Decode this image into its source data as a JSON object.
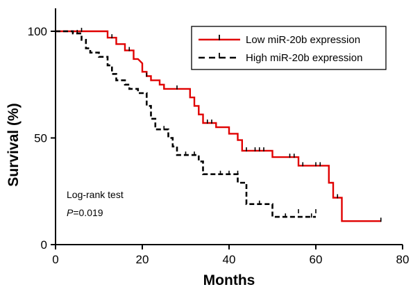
{
  "chart_data": {
    "type": "line",
    "title": "",
    "xlabel": "Months",
    "ylabel": "Survival (%)",
    "xlim": [
      0,
      80
    ],
    "ylim": [
      0,
      100
    ],
    "x_ticks": [
      "0",
      "20",
      "40",
      "60",
      "80"
    ],
    "y_ticks": [
      "0",
      "50",
      "100"
    ],
    "legend_position": "top-right",
    "grid": false,
    "series": [
      {
        "name": "Low miR-20b expression",
        "color": "#e00000",
        "line_style": "solid",
        "step_points": [
          [
            0,
            100
          ],
          [
            12,
            100
          ],
          [
            12,
            97
          ],
          [
            14,
            97
          ],
          [
            14,
            94
          ],
          [
            16,
            94
          ],
          [
            16,
            91
          ],
          [
            18,
            91
          ],
          [
            18,
            87
          ],
          [
            19,
            87
          ],
          [
            20,
            85
          ],
          [
            20,
            81
          ],
          [
            21,
            81
          ],
          [
            21,
            79
          ],
          [
            22,
            79
          ],
          [
            22,
            77
          ],
          [
            24,
            77
          ],
          [
            24,
            75
          ],
          [
            25,
            75
          ],
          [
            25,
            73
          ],
          [
            31,
            73
          ],
          [
            31,
            69
          ],
          [
            32,
            69
          ],
          [
            32,
            65
          ],
          [
            33,
            65
          ],
          [
            33,
            61
          ],
          [
            34,
            61
          ],
          [
            34,
            57
          ],
          [
            37,
            57
          ],
          [
            37,
            55
          ],
          [
            40,
            55
          ],
          [
            40,
            52
          ],
          [
            42,
            52
          ],
          [
            42,
            49
          ],
          [
            43,
            49
          ],
          [
            43,
            44
          ],
          [
            50,
            44
          ],
          [
            50,
            41
          ],
          [
            56,
            41
          ],
          [
            56,
            37
          ],
          [
            63,
            37
          ],
          [
            63,
            29
          ],
          [
            64,
            29
          ],
          [
            64,
            22
          ],
          [
            66,
            22
          ],
          [
            66,
            11
          ],
          [
            75,
            11
          ]
        ],
        "censored": [
          [
            6,
            100
          ],
          [
            13,
            97
          ],
          [
            17,
            91
          ],
          [
            21,
            79
          ],
          [
            28,
            73
          ],
          [
            35,
            57
          ],
          [
            36,
            57
          ],
          [
            44,
            44
          ],
          [
            46,
            44
          ],
          [
            47,
            44
          ],
          [
            48,
            44
          ],
          [
            54,
            41
          ],
          [
            55,
            41
          ],
          [
            57,
            37
          ],
          [
            60,
            37
          ],
          [
            61,
            37
          ],
          [
            65,
            22
          ],
          [
            75,
            11
          ]
        ]
      },
      {
        "name": "High miR-20b expression",
        "color": "#000000",
        "line_style": "dashed",
        "step_points": [
          [
            0,
            100
          ],
          [
            4,
            100
          ],
          [
            4,
            99
          ],
          [
            6,
            99
          ],
          [
            6,
            96
          ],
          [
            7,
            96
          ],
          [
            7,
            92
          ],
          [
            8,
            92
          ],
          [
            8,
            90
          ],
          [
            10,
            90
          ],
          [
            10,
            88
          ],
          [
            12,
            88
          ],
          [
            12,
            84
          ],
          [
            13,
            84
          ],
          [
            13,
            80
          ],
          [
            14,
            80
          ],
          [
            14,
            77
          ],
          [
            16,
            77
          ],
          [
            16,
            75
          ],
          [
            17,
            75
          ],
          [
            17,
            73
          ],
          [
            19,
            73
          ],
          [
            19,
            71
          ],
          [
            21,
            71
          ],
          [
            21,
            65
          ],
          [
            22,
            65
          ],
          [
            22,
            59
          ],
          [
            23,
            59
          ],
          [
            23,
            54
          ],
          [
            26,
            54
          ],
          [
            26,
            50
          ],
          [
            27,
            50
          ],
          [
            27,
            46
          ],
          [
            28,
            46
          ],
          [
            28,
            42
          ],
          [
            33,
            42
          ],
          [
            33,
            39
          ],
          [
            34,
            39
          ],
          [
            34,
            33
          ],
          [
            42,
            33
          ],
          [
            42,
            29
          ],
          [
            44,
            29
          ],
          [
            44,
            19
          ],
          [
            50,
            19
          ],
          [
            50,
            13
          ],
          [
            60,
            13
          ]
        ],
        "censored": [
          [
            5,
            99
          ],
          [
            25,
            54
          ],
          [
            30,
            42
          ],
          [
            32,
            42
          ],
          [
            38,
            33
          ],
          [
            40,
            33
          ],
          [
            42,
            33
          ],
          [
            47,
            19
          ],
          [
            53,
            13
          ],
          [
            56,
            15
          ],
          [
            59,
            13
          ],
          [
            60,
            15
          ]
        ]
      }
    ],
    "annotations": [
      {
        "text": "Log-rank test"
      },
      {
        "p_italic": "P",
        "p_value": "=0.019"
      }
    ]
  }
}
